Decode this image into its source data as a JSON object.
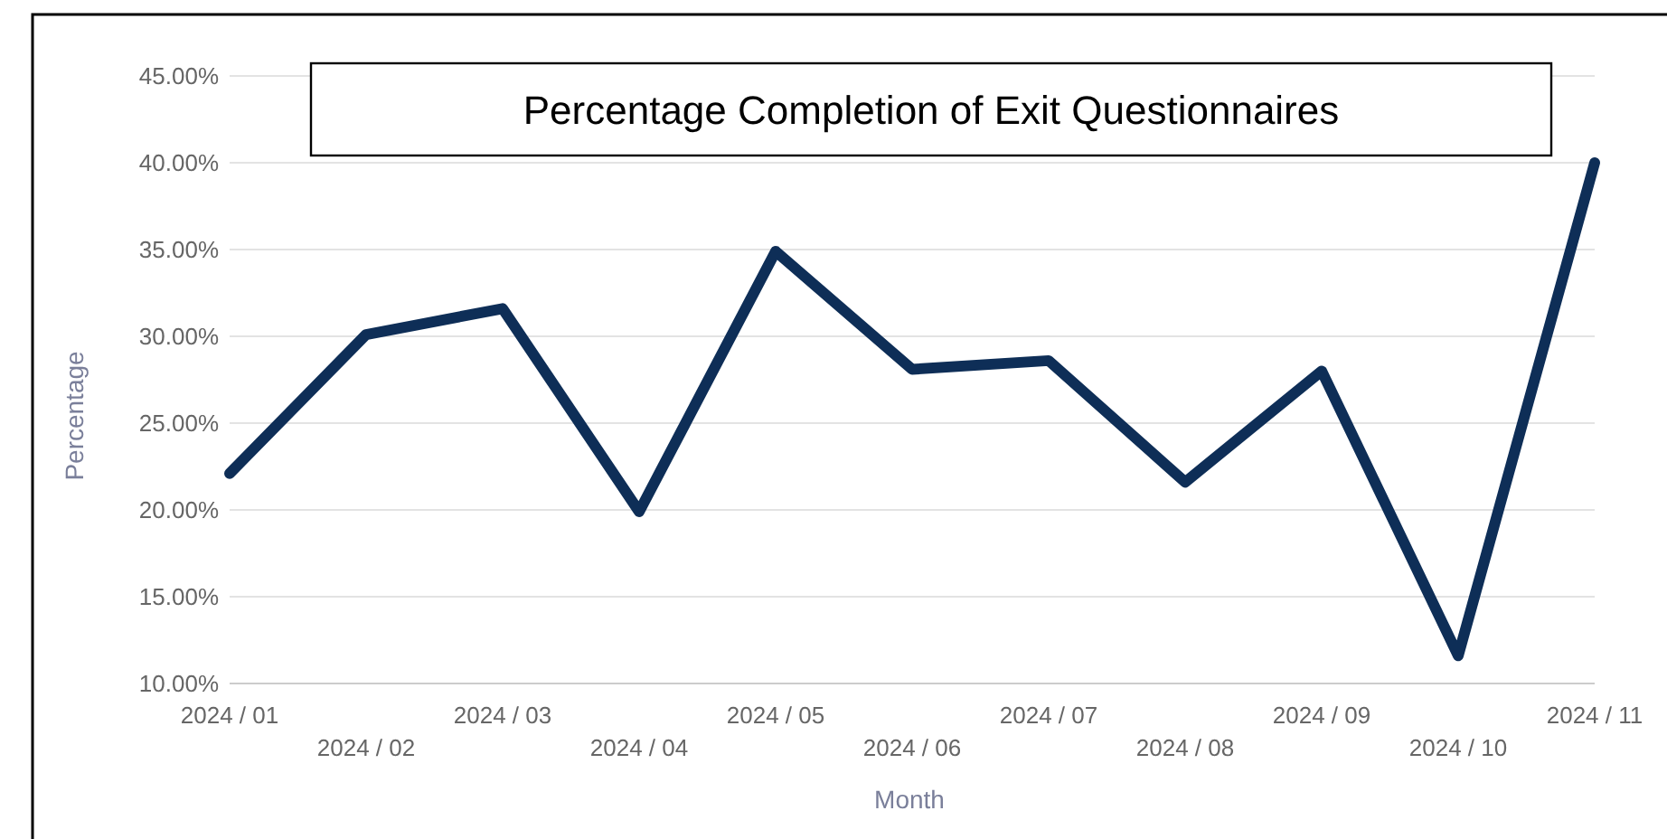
{
  "chart_data": {
    "type": "line",
    "title": "Percentage Completion of Exit Questionnaires",
    "xlabel": "Month",
    "ylabel": "Percentage",
    "categories": [
      "2024 / 01",
      "2024 / 02",
      "2024 / 03",
      "2024 / 04",
      "2024 / 05",
      "2024 / 06",
      "2024 / 07",
      "2024 / 08",
      "2024 / 09",
      "2024 / 10",
      "2024 / 11"
    ],
    "series": [
      {
        "color": "#0e2e57",
        "values": [
          22.1,
          30.1,
          31.6,
          19.9,
          34.9,
          28.1,
          28.6,
          21.6,
          28.0,
          11.6,
          40.0
        ]
      }
    ],
    "ylim": [
      10,
      45
    ],
    "yticks": [
      {
        "value": 10,
        "label": "10.00%"
      },
      {
        "value": 15,
        "label": "15.00%"
      },
      {
        "value": 20,
        "label": "20.00%"
      },
      {
        "value": 25,
        "label": "25.00%"
      },
      {
        "value": 30,
        "label": "30.00%"
      },
      {
        "value": 35,
        "label": "35.00%"
      },
      {
        "value": 40,
        "label": "40.00%"
      },
      {
        "value": 45,
        "label": "45.00%"
      }
    ],
    "grid": "y",
    "line_style": "solid"
  }
}
